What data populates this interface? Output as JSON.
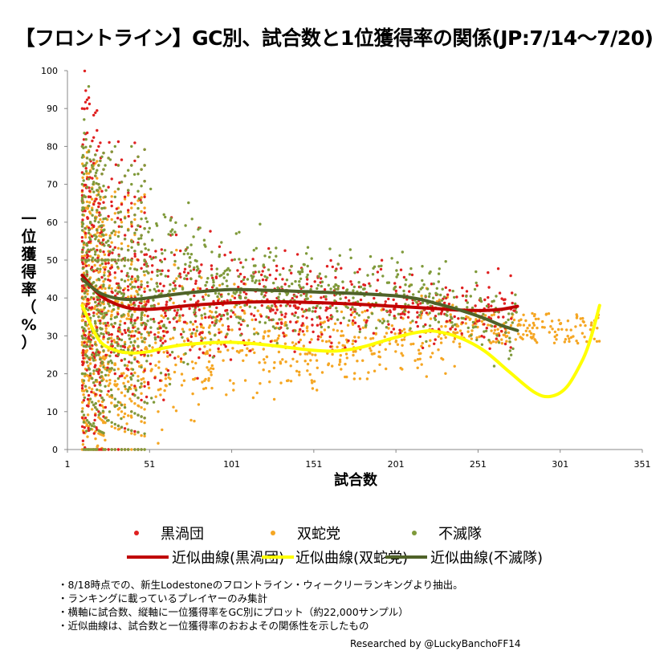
{
  "title": "【フロントライン】GC別、試合数と1位獲得率の関係(JP:7/14〜7/20)",
  "chart_data": {
    "type": "scatter",
    "xlabel": "試合数",
    "ylabel": "一位獲得率（%）",
    "xlim": [
      1,
      351
    ],
    "ylim": [
      0,
      100
    ],
    "x_ticks": [
      "1",
      "51",
      "101",
      "151",
      "201",
      "251",
      "301",
      "351"
    ],
    "y_ticks": [
      "0",
      "10",
      "20",
      "30",
      "40",
      "50",
      "60",
      "70",
      "80",
      "90",
      "100"
    ],
    "legend_position": "bottom",
    "series": [
      {
        "name": "黒渦団",
        "kind": "scatter",
        "color": "#e02020",
        "max_x": 275
      },
      {
        "name": "双蛇党",
        "kind": "scatter",
        "color": "#f5a623",
        "max_x": 325
      },
      {
        "name": "不滅隊",
        "kind": "scatter",
        "color": "#7f9a3a",
        "max_x": 275
      },
      {
        "name": "近似曲線(黒渦団)",
        "kind": "trendline",
        "color": "#c00000",
        "points": [
          [
            10,
            46
          ],
          [
            20,
            41
          ],
          [
            30,
            38.5
          ],
          [
            40,
            37.2
          ],
          [
            50,
            37
          ],
          [
            60,
            37.3
          ],
          [
            75,
            38
          ],
          [
            100,
            38.7
          ],
          [
            125,
            39
          ],
          [
            150,
            38.8
          ],
          [
            175,
            38.4
          ],
          [
            200,
            37.8
          ],
          [
            225,
            37.2
          ],
          [
            240,
            36.8
          ],
          [
            255,
            36.7
          ],
          [
            265,
            37
          ],
          [
            275,
            37.8
          ]
        ]
      },
      {
        "name": "近似曲線(双蛇党)",
        "kind": "trendline",
        "color": "#ffff00",
        "points": [
          [
            10,
            38
          ],
          [
            20,
            29
          ],
          [
            30,
            26.2
          ],
          [
            40,
            25.5
          ],
          [
            50,
            25.8
          ],
          [
            60,
            26.8
          ],
          [
            75,
            27.8
          ],
          [
            100,
            28.3
          ],
          [
            125,
            27.5
          ],
          [
            150,
            26.2
          ],
          [
            165,
            26
          ],
          [
            180,
            27
          ],
          [
            200,
            29.5
          ],
          [
            215,
            31
          ],
          [
            225,
            31.2
          ],
          [
            240,
            29.5
          ],
          [
            255,
            26
          ],
          [
            270,
            20.5
          ],
          [
            285,
            15.2
          ],
          [
            295,
            14
          ],
          [
            305,
            16.5
          ],
          [
            315,
            24
          ],
          [
            320,
            30
          ],
          [
            325,
            38
          ]
        ]
      },
      {
        "name": "近似曲線(不滅隊)",
        "kind": "trendline",
        "color": "#4f6228",
        "points": [
          [
            10,
            45
          ],
          [
            20,
            41.5
          ],
          [
            30,
            40
          ],
          [
            40,
            39.6
          ],
          [
            50,
            40
          ],
          [
            60,
            40.6
          ],
          [
            75,
            41.4
          ],
          [
            100,
            42.2
          ],
          [
            125,
            42
          ],
          [
            150,
            41.6
          ],
          [
            175,
            41.2
          ],
          [
            200,
            40.6
          ],
          [
            215,
            39.7
          ],
          [
            225,
            38.6
          ],
          [
            240,
            36.8
          ],
          [
            255,
            34.6
          ],
          [
            265,
            32.8
          ],
          [
            275,
            31.4
          ]
        ]
      }
    ],
    "notes": [
      "・8/18時点での、新生Lodestoneのフロントライン・ウィークリーランキングより抽出。",
      "・ランキングに載っているプレイヤーのみ集計",
      "・横軸に試合数、縦軸に一位獲得率をGC別にプロット（約22,000サンプル）",
      "・近似曲線は、試合数と一位獲得率のおおよその関係性を示したもの"
    ],
    "credit": "Researched by @LuckyBanchoFF14"
  }
}
